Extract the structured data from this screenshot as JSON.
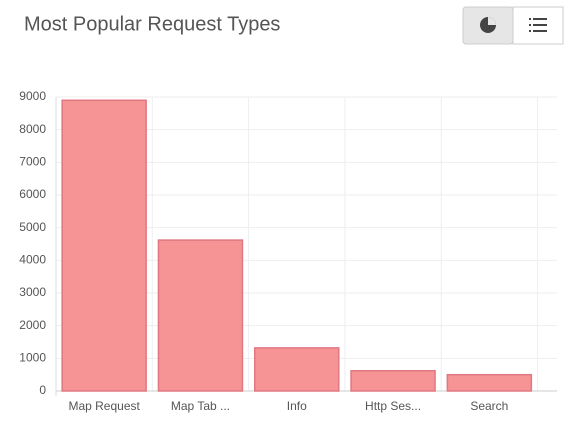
{
  "chart_data": {
    "type": "bar",
    "title": "Most Popular Request Types",
    "categories": [
      "Map Request",
      "Map Tab ...",
      "Info",
      "Http Ses...",
      "Search"
    ],
    "values": [
      8900,
      4620,
      1320,
      620,
      500
    ],
    "color": "#f59395",
    "ylim": [
      0,
      9000
    ],
    "yticks": [
      0,
      1000,
      2000,
      3000,
      4000,
      5000,
      6000,
      7000,
      8000,
      9000
    ],
    "grid": true
  }
}
